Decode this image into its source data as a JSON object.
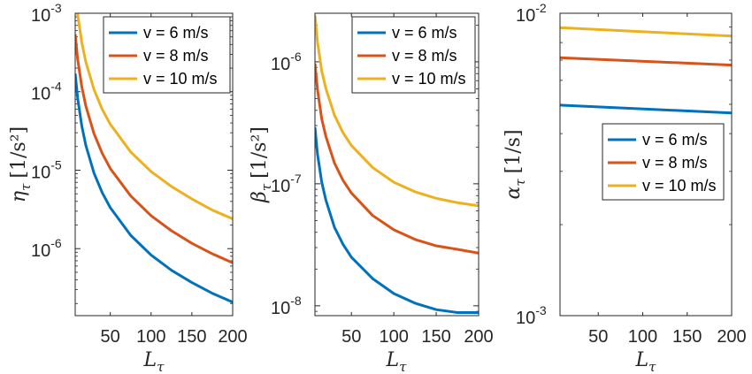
{
  "chart_data": [
    {
      "type": "line",
      "title": "",
      "xlabel": "L_τ",
      "ylabel": "η_τ [1/s²]",
      "xlim": [
        7,
        200
      ],
      "ylim": [
        1.4e-07,
        0.001
      ],
      "yscale": "log",
      "xticks": [
        "50",
        "100",
        "150",
        "200"
      ],
      "yticks": [
        {
          "base": "10",
          "exp": "-6",
          "value": 1e-06
        },
        {
          "base": "10",
          "exp": "-5",
          "value": 1e-05
        },
        {
          "base": "10",
          "exp": "-4",
          "value": 0.0001
        },
        {
          "base": "10",
          "exp": "-3",
          "value": 0.001
        }
      ],
      "legend": {
        "position": "top-right"
      },
      "series": [
        {
          "name": "v = 6 m/s",
          "color": "#0072BD",
          "x": [
            7,
            10,
            15,
            20,
            30,
            40,
            50,
            75,
            100,
            125,
            150,
            175,
            200
          ],
          "y": [
            0.00017,
            8.3e-05,
            3.7e-05,
            2.08e-05,
            9.2e-06,
            5.2e-06,
            3.33e-06,
            1.48e-06,
            8.3e-07,
            5.3e-07,
            3.7e-07,
            2.7e-07,
            2.08e-07
          ]
        },
        {
          "name": "v = 8 m/s",
          "color": "#D95319",
          "x": [
            7,
            10,
            15,
            20,
            30,
            40,
            50,
            75,
            100,
            125,
            150,
            175,
            200
          ],
          "y": [
            0.00054,
            0.00026,
            0.000117,
            6.6e-05,
            2.93e-05,
            1.65e-05,
            1.05e-05,
            4.7e-06,
            2.63e-06,
            1.69e-06,
            1.17e-06,
            8.6e-07,
            6.6e-07
          ]
        },
        {
          "name": "v = 10 m/s",
          "color": "#EDB120",
          "x": [
            9.8,
            15,
            20,
            30,
            40,
            50,
            75,
            100,
            125,
            150,
            175,
            200
          ],
          "y": [
            0.001,
            0.00043,
            0.00024,
            0.000107,
            6e-05,
            3.85e-05,
            1.71e-05,
            9.6e-06,
            6.2e-06,
            4.3e-06,
            3.1e-06,
            2.4e-06
          ]
        }
      ]
    },
    {
      "type": "line",
      "title": "",
      "xlabel": "L_τ",
      "ylabel": "β_τ [1/s²]",
      "xlim": [
        7,
        200
      ],
      "ylim": [
        8.3e-09,
        2.5e-06
      ],
      "yscale": "log",
      "xticks": [
        "50",
        "100",
        "150",
        "200"
      ],
      "yticks": [
        {
          "base": "10",
          "exp": "-8",
          "value": 1e-08
        },
        {
          "base": "10",
          "exp": "-7",
          "value": 1e-07
        },
        {
          "base": "10",
          "exp": "-6",
          "value": 1e-06
        }
      ],
      "legend": {
        "position": "top-right"
      },
      "series": [
        {
          "name": "v = 6 m/s",
          "color": "#0072BD",
          "x": [
            7,
            10,
            15,
            20,
            30,
            40,
            50,
            75,
            100,
            125,
            150,
            175,
            200
          ],
          "y": [
            2.9e-07,
            1.75e-07,
            1.03e-07,
            7.3e-08,
            4.4e-08,
            3.2e-08,
            2.5e-08,
            1.67e-08,
            1.26e-08,
            1.05e-08,
            9.3e-09,
            8.8e-09,
            8.8e-09
          ]
        },
        {
          "name": "v = 8 m/s",
          "color": "#D95319",
          "x": [
            7,
            10,
            15,
            20,
            30,
            40,
            50,
            75,
            100,
            125,
            150,
            175,
            200
          ],
          "y": [
            9.7e-07,
            5.9e-07,
            3.4e-07,
            2.43e-07,
            1.48e-07,
            1.07e-07,
            8.4e-08,
            5.5e-08,
            4.2e-08,
            3.5e-08,
            3.1e-08,
            2.9e-08,
            2.7e-08
          ]
        },
        {
          "name": "v = 10 m/s",
          "color": "#EDB120",
          "x": [
            7,
            10,
            15,
            20,
            30,
            40,
            50,
            75,
            100,
            125,
            150,
            175,
            200
          ],
          "y": [
            2.4e-06,
            1.45e-06,
            8.4e-07,
            6e-07,
            3.65e-07,
            2.63e-07,
            2.06e-07,
            1.36e-07,
            1.03e-07,
            8.6e-08,
            7.6e-08,
            7e-08,
            6.6e-08
          ]
        }
      ]
    },
    {
      "type": "line",
      "title": "",
      "xlabel": "L_τ",
      "ylabel": "α_τ [1/s]",
      "xlim": [
        7,
        200
      ],
      "ylim": [
        0.001,
        0.01
      ],
      "yscale": "log",
      "xticks": [
        "50",
        "100",
        "150",
        "200"
      ],
      "yticks": [
        {
          "base": "10",
          "exp": "-3",
          "value": 0.001
        },
        {
          "base": "10",
          "exp": "-2",
          "value": 0.01
        }
      ],
      "legend": {
        "position": "middle-right"
      },
      "series": [
        {
          "name": "v = 6 m/s",
          "color": "#0072BD",
          "x": [
            7,
            200
          ],
          "y": [
            0.00497,
            0.00468
          ]
        },
        {
          "name": "v = 8 m/s",
          "color": "#D95319",
          "x": [
            7,
            200
          ],
          "y": [
            0.00713,
            0.00674
          ]
        },
        {
          "name": "v = 10 m/s",
          "color": "#EDB120",
          "x": [
            7,
            200
          ],
          "y": [
            0.00896,
            0.00841
          ]
        }
      ]
    }
  ]
}
